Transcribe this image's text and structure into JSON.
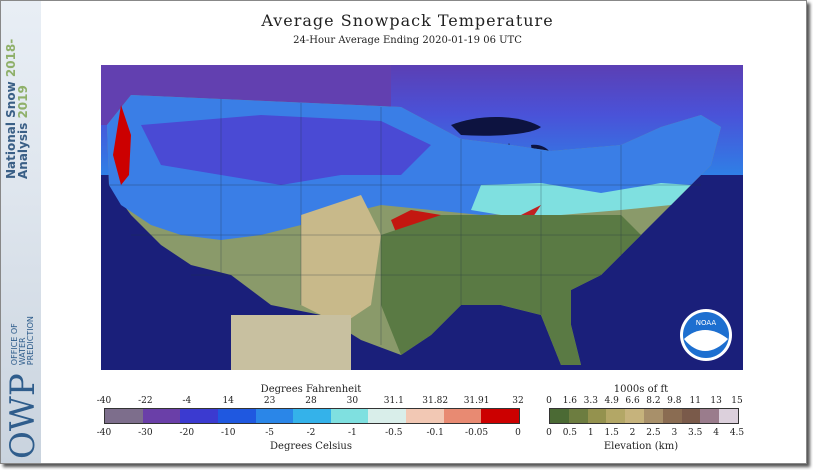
{
  "title": "Average Snowpack Temperature",
  "subtitle": "24-Hour Average Ending 2020-01-19 06 UTC",
  "sidebar": {
    "nsa_line1": "National Snow",
    "nsa_line2": "Analysis",
    "year1": "2018-",
    "year2": "2019",
    "owp": "OWP",
    "owp_l1": "OFFICE OF",
    "owp_l2": "WATER",
    "owp_l3": "PREDICTION"
  },
  "noaa_badge": "NOAA",
  "temp_legend": {
    "top_title": "Degrees Fahrenheit",
    "bottom_title": "Degrees Celsius",
    "fahrenheit_ticks": [
      "-40",
      "-22",
      "-4",
      "14",
      "23",
      "28",
      "30",
      "31.1",
      "31.82",
      "31.91",
      "32"
    ],
    "celsius_ticks": [
      "-40",
      "-30",
      "-20",
      "-10",
      "-5",
      "-2",
      "-1",
      "-0.5",
      "-0.1",
      "-0.05",
      "0"
    ],
    "colors": [
      "#7d6e8c",
      "#6a3fa8",
      "#3b3ad0",
      "#1f58e0",
      "#2a86e8",
      "#34b2ea",
      "#7fe0e0",
      "#d9eeea",
      "#f2c8b4",
      "#e88a72",
      "#cc0000"
    ]
  },
  "elev_legend": {
    "top_title": "1000s of ft",
    "bottom_title": "Elevation (km)",
    "ft_ticks": [
      "0",
      "1.6",
      "3.3",
      "4.9",
      "6.6",
      "8.2",
      "9.8",
      "11",
      "13",
      "15"
    ],
    "km_ticks": [
      "0",
      "0.5",
      "1",
      "1.5",
      "2",
      "2.5",
      "3",
      "3.5",
      "4",
      "4.5"
    ],
    "colors": [
      "#4b6a34",
      "#6d7d40",
      "#94924e",
      "#b3a766",
      "#c6b37c",
      "#a8906a",
      "#8a6c52",
      "#7a5a4a",
      "#9a7c8c",
      "#dcd0dc"
    ]
  }
}
